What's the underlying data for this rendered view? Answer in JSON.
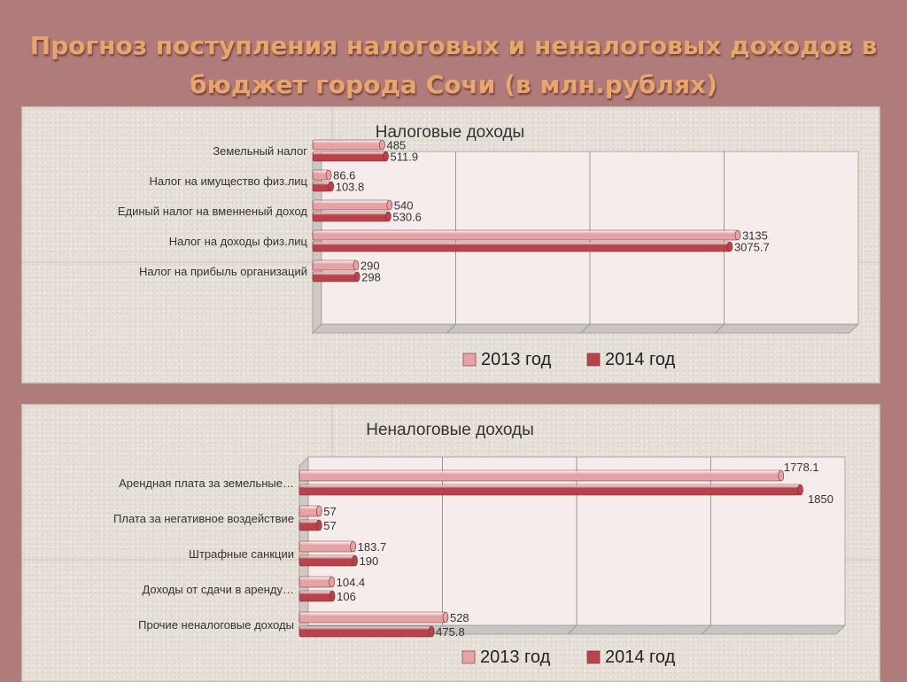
{
  "title": "Прогноз поступления  налоговых и неналоговых доходов в бюджет города Сочи (в млн.рублях)",
  "title_lines": [
    "Прогноз поступления  налоговых и неналоговых доходов в",
    "бюджет города Сочи (в млн.рублях)"
  ],
  "colors": {
    "series_2013": "#e5a3a6",
    "series_2014": "#b8434a",
    "title": "#e8a66a",
    "background": "#b07b7b"
  },
  "chart_data": [
    {
      "type": "bar",
      "orientation": "horizontal",
      "title": "Налоговые доходы",
      "categories": [
        "Земельный налог",
        "Налог на имущество физ.лиц",
        "Единый налог на вменненый доход",
        "Налог на доходы физ.лиц",
        "Налог на прибыль организаций"
      ],
      "series": [
        {
          "name": "2013 год",
          "values": [
            485,
            86.6,
            540,
            3135,
            290
          ]
        },
        {
          "name": "2014 год",
          "values": [
            511.9,
            103.8,
            530.6,
            3075.7,
            298
          ]
        }
      ],
      "value_labels": [
        [
          "485",
          "86.6",
          "540",
          "3135",
          "290"
        ],
        [
          "511.9",
          "103.8",
          "530.6",
          "3075.7",
          "298"
        ]
      ],
      "xlim": [
        0,
        4000
      ],
      "grid": true,
      "legend": "bottom"
    },
    {
      "type": "bar",
      "orientation": "horizontal",
      "title": "Неналоговые доходы",
      "categories": [
        "Арендная плата за земельные…",
        "Плата за негативное воздействие",
        "Штрафные санкции",
        "Доходы от сдачи в аренду…",
        "Прочие неналоговые доходы"
      ],
      "series": [
        {
          "name": "2013 год",
          "values": [
            1778.1,
            57,
            183.7,
            104.4,
            528
          ]
        },
        {
          "name": "2014 год",
          "values": [
            1850,
            57,
            190,
            106,
            475.8
          ]
        }
      ],
      "value_labels": [
        [
          "1778.1",
          "57",
          "183.7",
          "104.4",
          "528"
        ],
        [
          "1850",
          "57",
          "190",
          "106",
          "475.8"
        ]
      ],
      "xlim": [
        0,
        2000
      ],
      "grid": true,
      "legend": "bottom"
    }
  ]
}
